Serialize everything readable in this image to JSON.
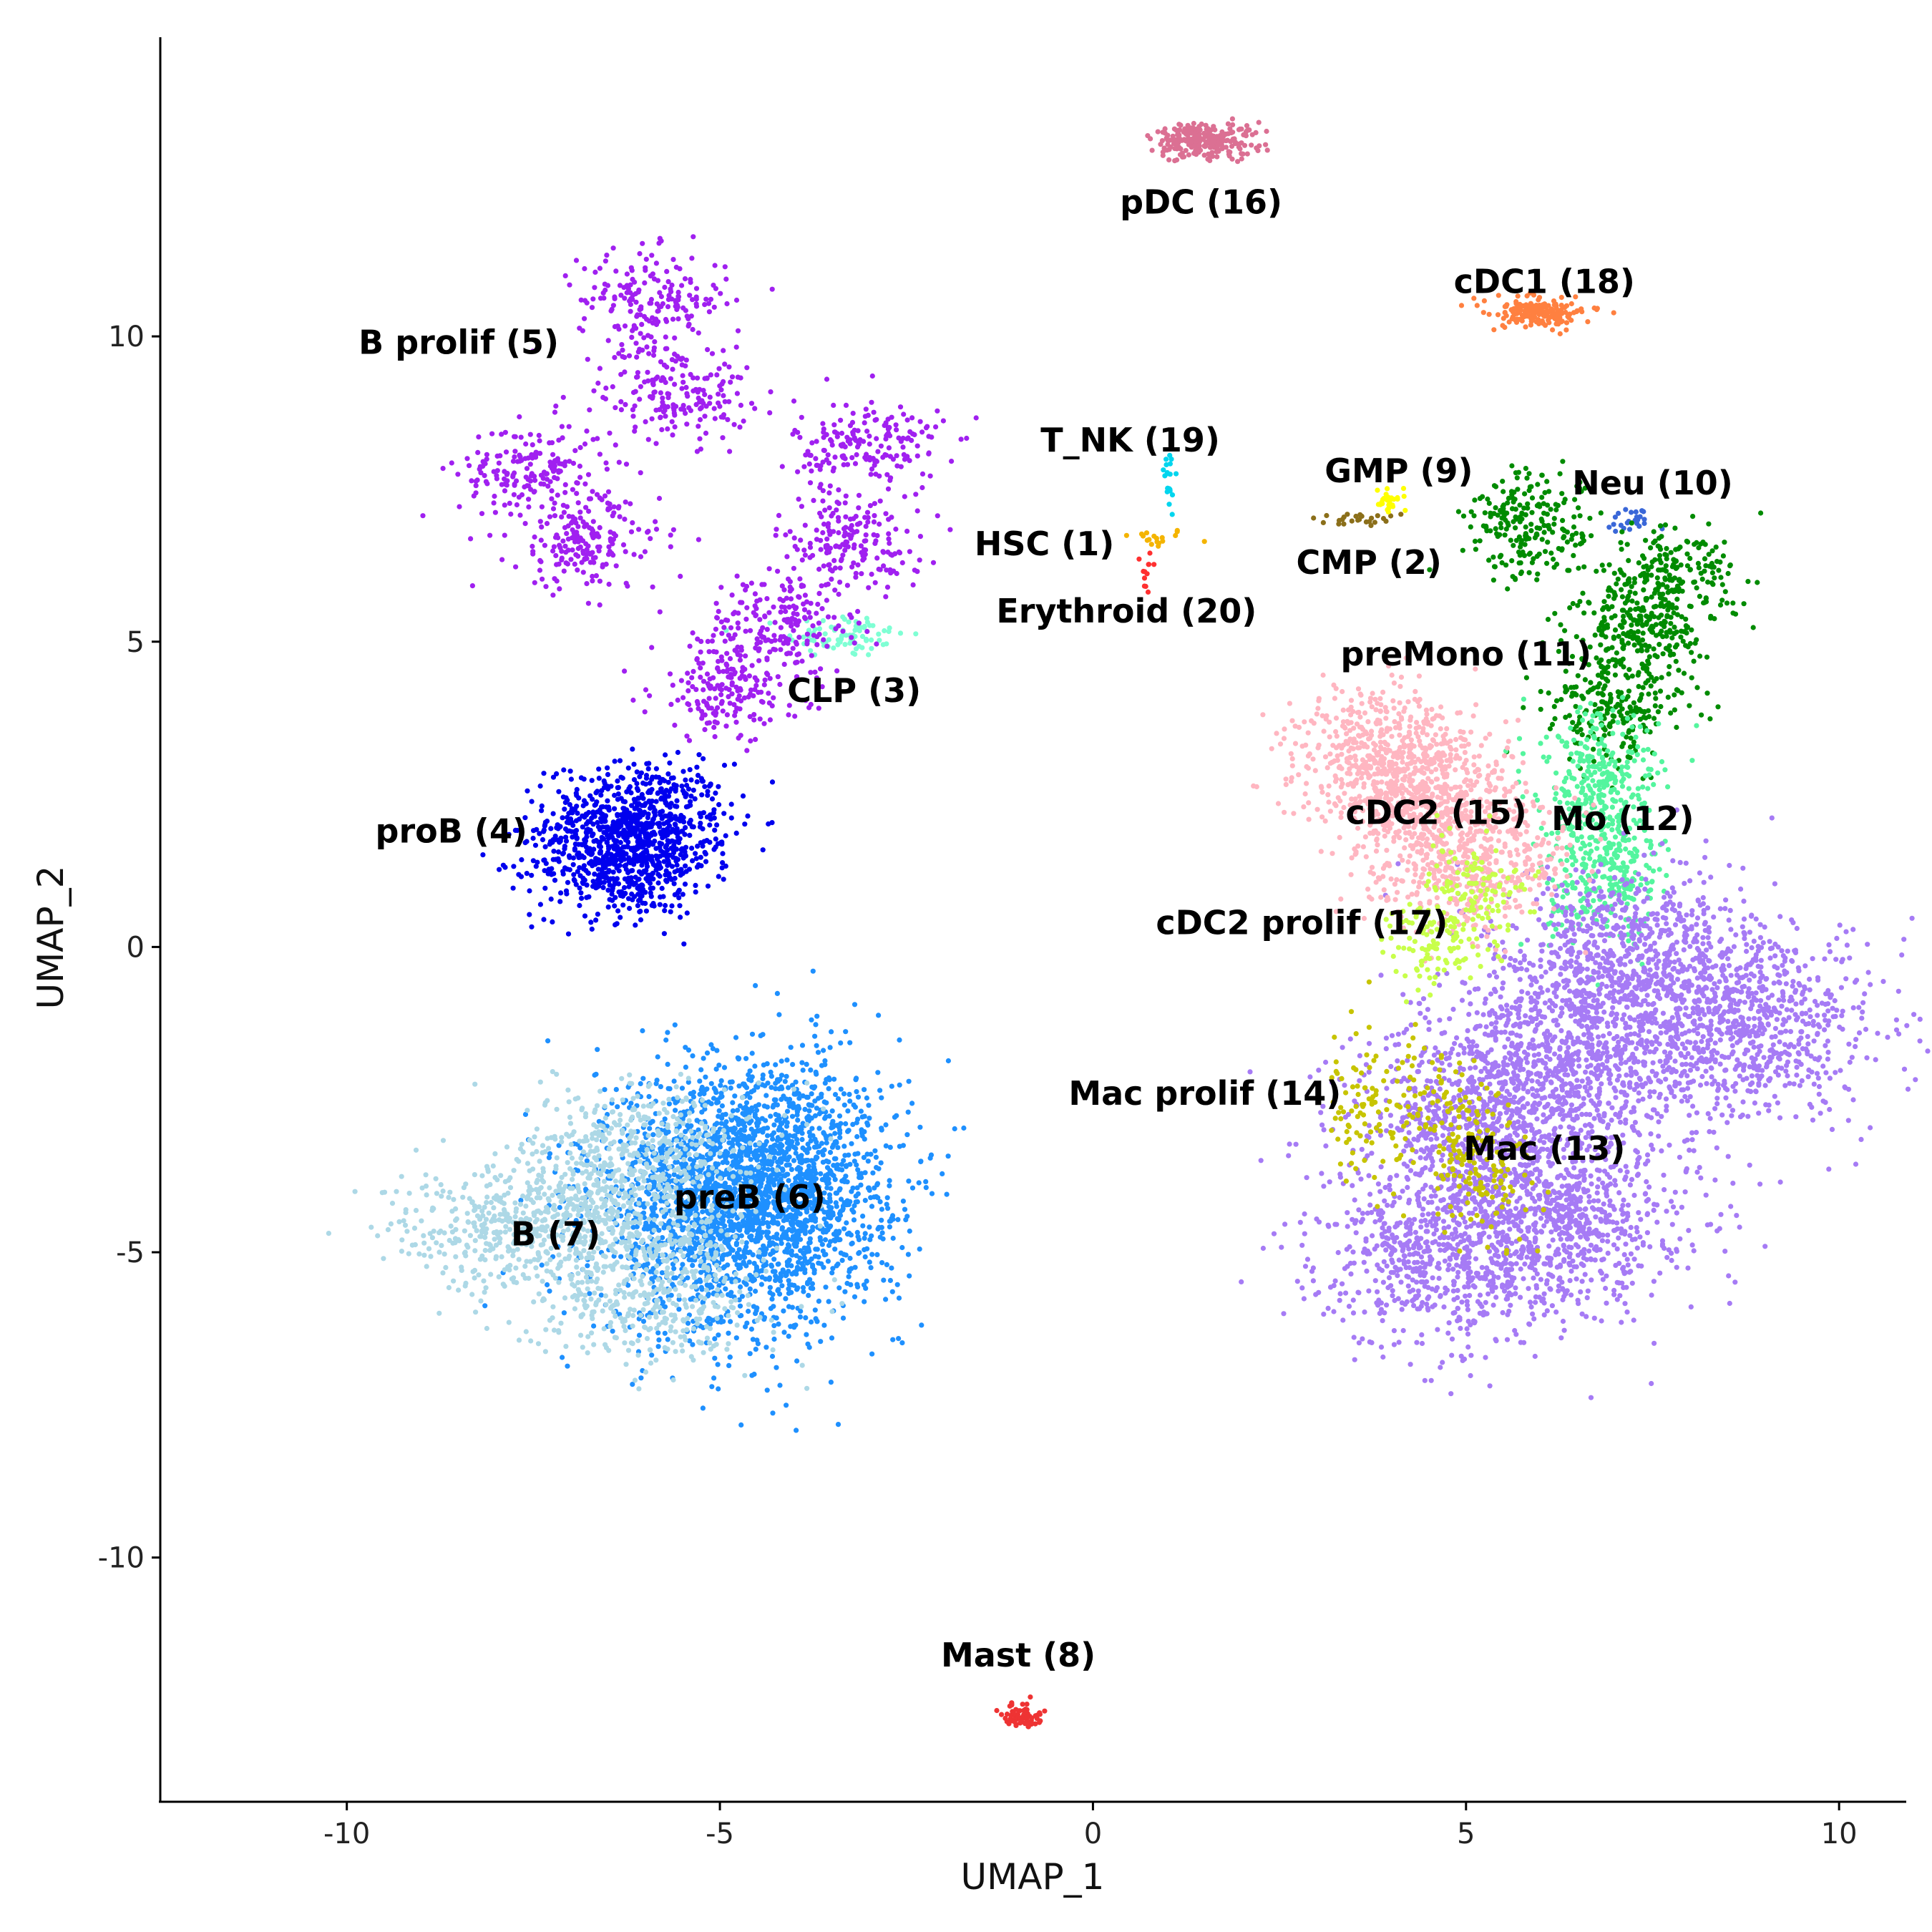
{
  "chart_data": {
    "type": "scatter",
    "xlabel": "UMAP_1",
    "ylabel": "UMAP_2",
    "xlim": [
      -12.5,
      10.9
    ],
    "ylim": [
      -14.0,
      14.9
    ],
    "x_ticks": [
      -10,
      -5,
      0,
      5,
      10
    ],
    "x_tick_labels": [
      "-10",
      "-5",
      "0",
      "5",
      "10"
    ],
    "y_ticks": [
      -10,
      -5,
      0,
      5,
      10
    ],
    "y_tick_labels": [
      "-10",
      "-5",
      "0",
      "5",
      "10"
    ],
    "grid": false,
    "legend": "none",
    "clusters": [
      {
        "id": 1,
        "label": "HSC (1)",
        "color": "#f4b400",
        "label_pos": [
          -0.65,
          6.6
        ],
        "centers": [
          [
            0.8,
            6.7
          ]
        ],
        "spread": [
          0.25,
          0.08
        ],
        "n": 18
      },
      {
        "id": 2,
        "label": "CMP (2)",
        "color": "#8b6f1a",
        "label_pos": [
          3.7,
          6.3
        ],
        "centers": [
          [
            3.6,
            7.0
          ]
        ],
        "spread": [
          0.35,
          0.06
        ],
        "n": 25
      },
      {
        "id": 3,
        "label": "CLP (3)",
        "color": "#7fffd4",
        "label_pos": [
          -3.2,
          4.2
        ],
        "centers": [
          [
            -3.3,
            5.1
          ]
        ],
        "spread": [
          0.4,
          0.18
        ],
        "n": 80
      },
      {
        "id": 4,
        "label": "proB (4)",
        "color": "#0000ee",
        "label_pos": [
          -8.6,
          1.9
        ],
        "centers": [
          [
            -6.1,
            2.1
          ],
          [
            -6.3,
            1.4
          ]
        ],
        "spread": [
          0.6,
          0.45
        ],
        "n": 1100
      },
      {
        "id": 5,
        "label": "B prolif (5)",
        "color": "#a020f0",
        "label_pos": [
          -8.5,
          9.9
        ],
        "centers": [
          [
            -5.9,
            10.6
          ],
          [
            -7.5,
            7.8
          ],
          [
            -5.6,
            9.1
          ],
          [
            -3.0,
            8.2
          ],
          [
            -3.3,
            6.6
          ],
          [
            -4.2,
            5.3
          ],
          [
            -6.8,
            6.6
          ],
          [
            -4.9,
            4.2
          ]
        ],
        "spread": [
          0.5,
          0.4
        ],
        "n": 1500
      },
      {
        "id": 6,
        "label": "preB (6)",
        "color": "#1e90ff",
        "label_pos": [
          -4.6,
          -4.1
        ],
        "centers": [
          [
            -4.9,
            -4.4
          ],
          [
            -4.4,
            -3.7
          ]
        ],
        "spread": [
          0.9,
          1.0
        ],
        "n": 2800
      },
      {
        "id": 7,
        "label": "B (7)",
        "color": "#add8e6",
        "label_pos": [
          -7.2,
          -4.7
        ],
        "centers": [
          [
            -7.9,
            -4.6
          ],
          [
            -6.2,
            -4.5
          ],
          [
            -6.0,
            -5.8
          ],
          [
            -6.1,
            -3.2
          ]
        ],
        "spread": [
          0.8,
          0.5
        ],
        "n": 1500
      },
      {
        "id": 8,
        "label": "Mast (8)",
        "color": "#ee3333",
        "label_pos": [
          -1.0,
          -11.6
        ],
        "centers": [
          [
            -0.95,
            -12.6
          ]
        ],
        "spread": [
          0.12,
          0.1
        ],
        "n": 70
      },
      {
        "id": 9,
        "label": "GMP (9)",
        "color": "#ffff00",
        "label_pos": [
          4.1,
          7.8
        ],
        "centers": [
          [
            4.0,
            7.3
          ]
        ],
        "spread": [
          0.12,
          0.08
        ],
        "n": 30
      },
      {
        "id": 10,
        "label": "Neu (10)",
        "color": "#3a67d8",
        "label_pos": [
          7.5,
          7.6
        ],
        "centers": [
          [
            7.2,
            7.0
          ]
        ],
        "spread": [
          0.2,
          0.12
        ],
        "n": 25
      },
      {
        "id": 11,
        "label": "preMono (11)",
        "color": "#008b00",
        "label_pos": [
          5.0,
          4.8
        ],
        "centers": [
          [
            7.3,
            5.2
          ],
          [
            5.9,
            6.9
          ],
          [
            7.0,
            3.9
          ],
          [
            7.7,
            6.0
          ]
        ],
        "spread": [
          0.45,
          0.45
        ],
        "n": 900
      },
      {
        "id": 12,
        "label": "Mo (12)",
        "color": "#54f59e",
        "label_pos": [
          7.1,
          2.1
        ],
        "centers": [
          [
            6.8,
            2.6
          ],
          [
            6.9,
            1.2
          ]
        ],
        "spread": [
          0.4,
          0.6
        ],
        "n": 600
      },
      {
        "id": 13,
        "label": "Mac (13)",
        "color": "#a67bf5",
        "label_pos": [
          6.05,
          -3.3
        ],
        "centers": [
          [
            4.8,
            -5.0
          ],
          [
            6.3,
            -4.4
          ],
          [
            8.8,
            -1.3
          ],
          [
            6.5,
            -1.7
          ],
          [
            7.2,
            -0.2
          ],
          [
            5.3,
            -2.8
          ]
        ],
        "spread": [
          0.9,
          0.75
        ],
        "n": 4500
      },
      {
        "id": 14,
        "label": "Mac prolif (14)",
        "color": "#c7c400",
        "label_pos": [
          1.5,
          -2.4
        ],
        "centers": [
          [
            3.7,
            -2.6
          ],
          [
            4.8,
            -2.8
          ],
          [
            5.2,
            -3.8
          ]
        ],
        "spread": [
          0.35,
          0.6
        ],
        "n": 300
      },
      {
        "id": 15,
        "label": "cDC2 (15)",
        "color": "#ffb6c1",
        "label_pos": [
          4.6,
          2.2
        ],
        "centers": [
          [
            4.5,
            2.4
          ],
          [
            5.0,
            1.4
          ],
          [
            3.9,
            3.2
          ]
        ],
        "spread": [
          0.65,
          0.55
        ],
        "n": 1400
      },
      {
        "id": 16,
        "label": "pDC (16)",
        "color": "#db7093",
        "label_pos": [
          1.45,
          12.2
        ],
        "centers": [
          [
            1.5,
            13.2
          ]
        ],
        "spread": [
          0.35,
          0.15
        ],
        "n": 260
      },
      {
        "id": 17,
        "label": "cDC2 prolif (17)",
        "color": "#c8ff4a",
        "label_pos": [
          2.8,
          0.4
        ],
        "centers": [
          [
            4.6,
            0.2
          ],
          [
            5.2,
            0.9
          ]
        ],
        "spread": [
          0.35,
          0.45
        ],
        "n": 220
      },
      {
        "id": 18,
        "label": "cDC1 (18)",
        "color": "#ff8040",
        "label_pos": [
          6.05,
          10.9
        ],
        "centers": [
          [
            6.0,
            10.4
          ]
        ],
        "spread": [
          0.35,
          0.12
        ],
        "n": 180
      },
      {
        "id": 19,
        "label": "T_NK (19)",
        "color": "#00d5ee",
        "label_pos": [
          0.5,
          8.3
        ],
        "centers": [
          [
            1.0,
            7.6
          ]
        ],
        "spread": [
          0.05,
          0.25
        ],
        "n": 20
      },
      {
        "id": 20,
        "label": "Erythroid (20)",
        "color": "#ff3030",
        "label_pos": [
          0.45,
          5.5
        ],
        "centers": [
          [
            0.75,
            6.2
          ]
        ],
        "spread": [
          0.05,
          0.15
        ],
        "n": 12
      }
    ]
  }
}
